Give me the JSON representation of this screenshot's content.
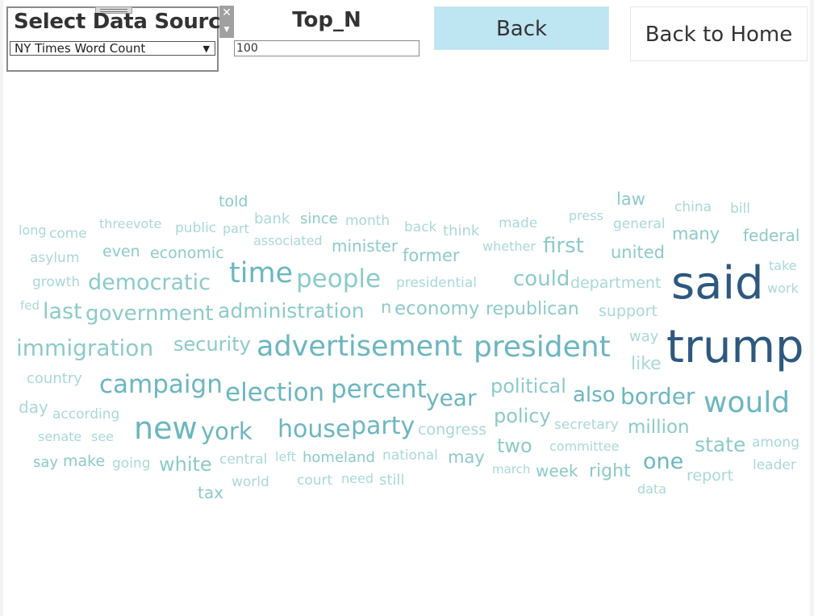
{
  "filters": {
    "data_source_title": "Select Data Source",
    "data_source_value": "NY Times Word Count",
    "top_n_title": "Top_N",
    "top_n_value": "100"
  },
  "buttons": {
    "back": "Back",
    "back_home": "Back to Home"
  },
  "colors": {
    "very_light": "#a9d8d8",
    "light": "#8ccaca",
    "medium": "#6bb6c0",
    "dark": "#2e587f"
  },
  "word_cloud": [
    {
      "word": "told",
      "tone": "light"
    },
    {
      "word": "law",
      "tone": "light"
    },
    {
      "word": "china",
      "tone": "very_light"
    },
    {
      "word": "bill",
      "tone": "very_light"
    },
    {
      "word": "long",
      "tone": "very_light"
    },
    {
      "word": "come",
      "tone": "very_light"
    },
    {
      "word": "three",
      "tone": "very_light"
    },
    {
      "word": "vote",
      "tone": "very_light"
    },
    {
      "word": "public",
      "tone": "very_light"
    },
    {
      "word": "part",
      "tone": "very_light"
    },
    {
      "word": "bank",
      "tone": "very_light"
    },
    {
      "word": "since",
      "tone": "light"
    },
    {
      "word": "month",
      "tone": "very_light"
    },
    {
      "word": "back",
      "tone": "very_light"
    },
    {
      "word": "think",
      "tone": "very_light"
    },
    {
      "word": "made",
      "tone": "very_light"
    },
    {
      "word": "press",
      "tone": "very_light"
    },
    {
      "word": "general",
      "tone": "very_light"
    },
    {
      "word": "many",
      "tone": "light"
    },
    {
      "word": "federal",
      "tone": "light"
    },
    {
      "word": "asylum",
      "tone": "very_light"
    },
    {
      "word": "even",
      "tone": "light"
    },
    {
      "word": "economic",
      "tone": "light"
    },
    {
      "word": "associated",
      "tone": "very_light"
    },
    {
      "word": "minister",
      "tone": "light"
    },
    {
      "word": "former",
      "tone": "light"
    },
    {
      "word": "whether",
      "tone": "very_light"
    },
    {
      "word": "first",
      "tone": "light"
    },
    {
      "word": "united",
      "tone": "light"
    },
    {
      "word": "take",
      "tone": "very_light"
    },
    {
      "word": "said",
      "tone": "dark"
    },
    {
      "word": "work",
      "tone": "very_light"
    },
    {
      "word": "growth",
      "tone": "very_light"
    },
    {
      "word": "democratic",
      "tone": "light"
    },
    {
      "word": "time",
      "tone": "medium"
    },
    {
      "word": "people",
      "tone": "light"
    },
    {
      "word": "presidential",
      "tone": "very_light"
    },
    {
      "word": "could",
      "tone": "light"
    },
    {
      "word": "department",
      "tone": "very_light"
    },
    {
      "word": "fed",
      "tone": "very_light"
    },
    {
      "word": "last",
      "tone": "light"
    },
    {
      "word": "government",
      "tone": "light"
    },
    {
      "word": "administration",
      "tone": "light"
    },
    {
      "word": "n",
      "tone": "light"
    },
    {
      "word": "economy",
      "tone": "light"
    },
    {
      "word": "republican",
      "tone": "light"
    },
    {
      "word": "support",
      "tone": "very_light"
    },
    {
      "word": "way",
      "tone": "very_light"
    },
    {
      "word": "immigration",
      "tone": "light"
    },
    {
      "word": "security",
      "tone": "light"
    },
    {
      "word": "advertisement",
      "tone": "medium"
    },
    {
      "word": "president",
      "tone": "medium"
    },
    {
      "word": "trump",
      "tone": "dark"
    },
    {
      "word": "like",
      "tone": "very_light"
    },
    {
      "word": "country",
      "tone": "very_light"
    },
    {
      "word": "campaign",
      "tone": "medium"
    },
    {
      "word": "election",
      "tone": "medium"
    },
    {
      "word": "percent",
      "tone": "medium"
    },
    {
      "word": "year",
      "tone": "medium"
    },
    {
      "word": "political",
      "tone": "light"
    },
    {
      "word": "also",
      "tone": "medium"
    },
    {
      "word": "border",
      "tone": "medium"
    },
    {
      "word": "would",
      "tone": "medium"
    },
    {
      "word": "day",
      "tone": "very_light"
    },
    {
      "word": "according",
      "tone": "very_light"
    },
    {
      "word": "new",
      "tone": "medium"
    },
    {
      "word": "york",
      "tone": "medium"
    },
    {
      "word": "house",
      "tone": "medium"
    },
    {
      "word": "party",
      "tone": "medium"
    },
    {
      "word": "congress",
      "tone": "very_light"
    },
    {
      "word": "policy",
      "tone": "light"
    },
    {
      "word": "secretary",
      "tone": "very_light"
    },
    {
      "word": "million",
      "tone": "light"
    },
    {
      "word": "state",
      "tone": "light"
    },
    {
      "word": "among",
      "tone": "very_light"
    },
    {
      "word": "senate",
      "tone": "very_light"
    },
    {
      "word": "see",
      "tone": "very_light"
    },
    {
      "word": "two",
      "tone": "light"
    },
    {
      "word": "committee",
      "tone": "very_light"
    },
    {
      "word": "say",
      "tone": "light"
    },
    {
      "word": "make",
      "tone": "light"
    },
    {
      "word": "going",
      "tone": "very_light"
    },
    {
      "word": "white",
      "tone": "light"
    },
    {
      "word": "central",
      "tone": "very_light"
    },
    {
      "word": "left",
      "tone": "very_light"
    },
    {
      "word": "homeland",
      "tone": "light"
    },
    {
      "word": "national",
      "tone": "very_light"
    },
    {
      "word": "may",
      "tone": "light"
    },
    {
      "word": "march",
      "tone": "very_light"
    },
    {
      "word": "week",
      "tone": "light"
    },
    {
      "word": "right",
      "tone": "light"
    },
    {
      "word": "one",
      "tone": "medium"
    },
    {
      "word": "report",
      "tone": "very_light"
    },
    {
      "word": "leader",
      "tone": "very_light"
    },
    {
      "word": "tax",
      "tone": "light"
    },
    {
      "word": "world",
      "tone": "very_light"
    },
    {
      "word": "court",
      "tone": "very_light"
    },
    {
      "word": "need",
      "tone": "very_light"
    },
    {
      "word": "still",
      "tone": "very_light"
    },
    {
      "word": "data",
      "tone": "very_light"
    }
  ]
}
